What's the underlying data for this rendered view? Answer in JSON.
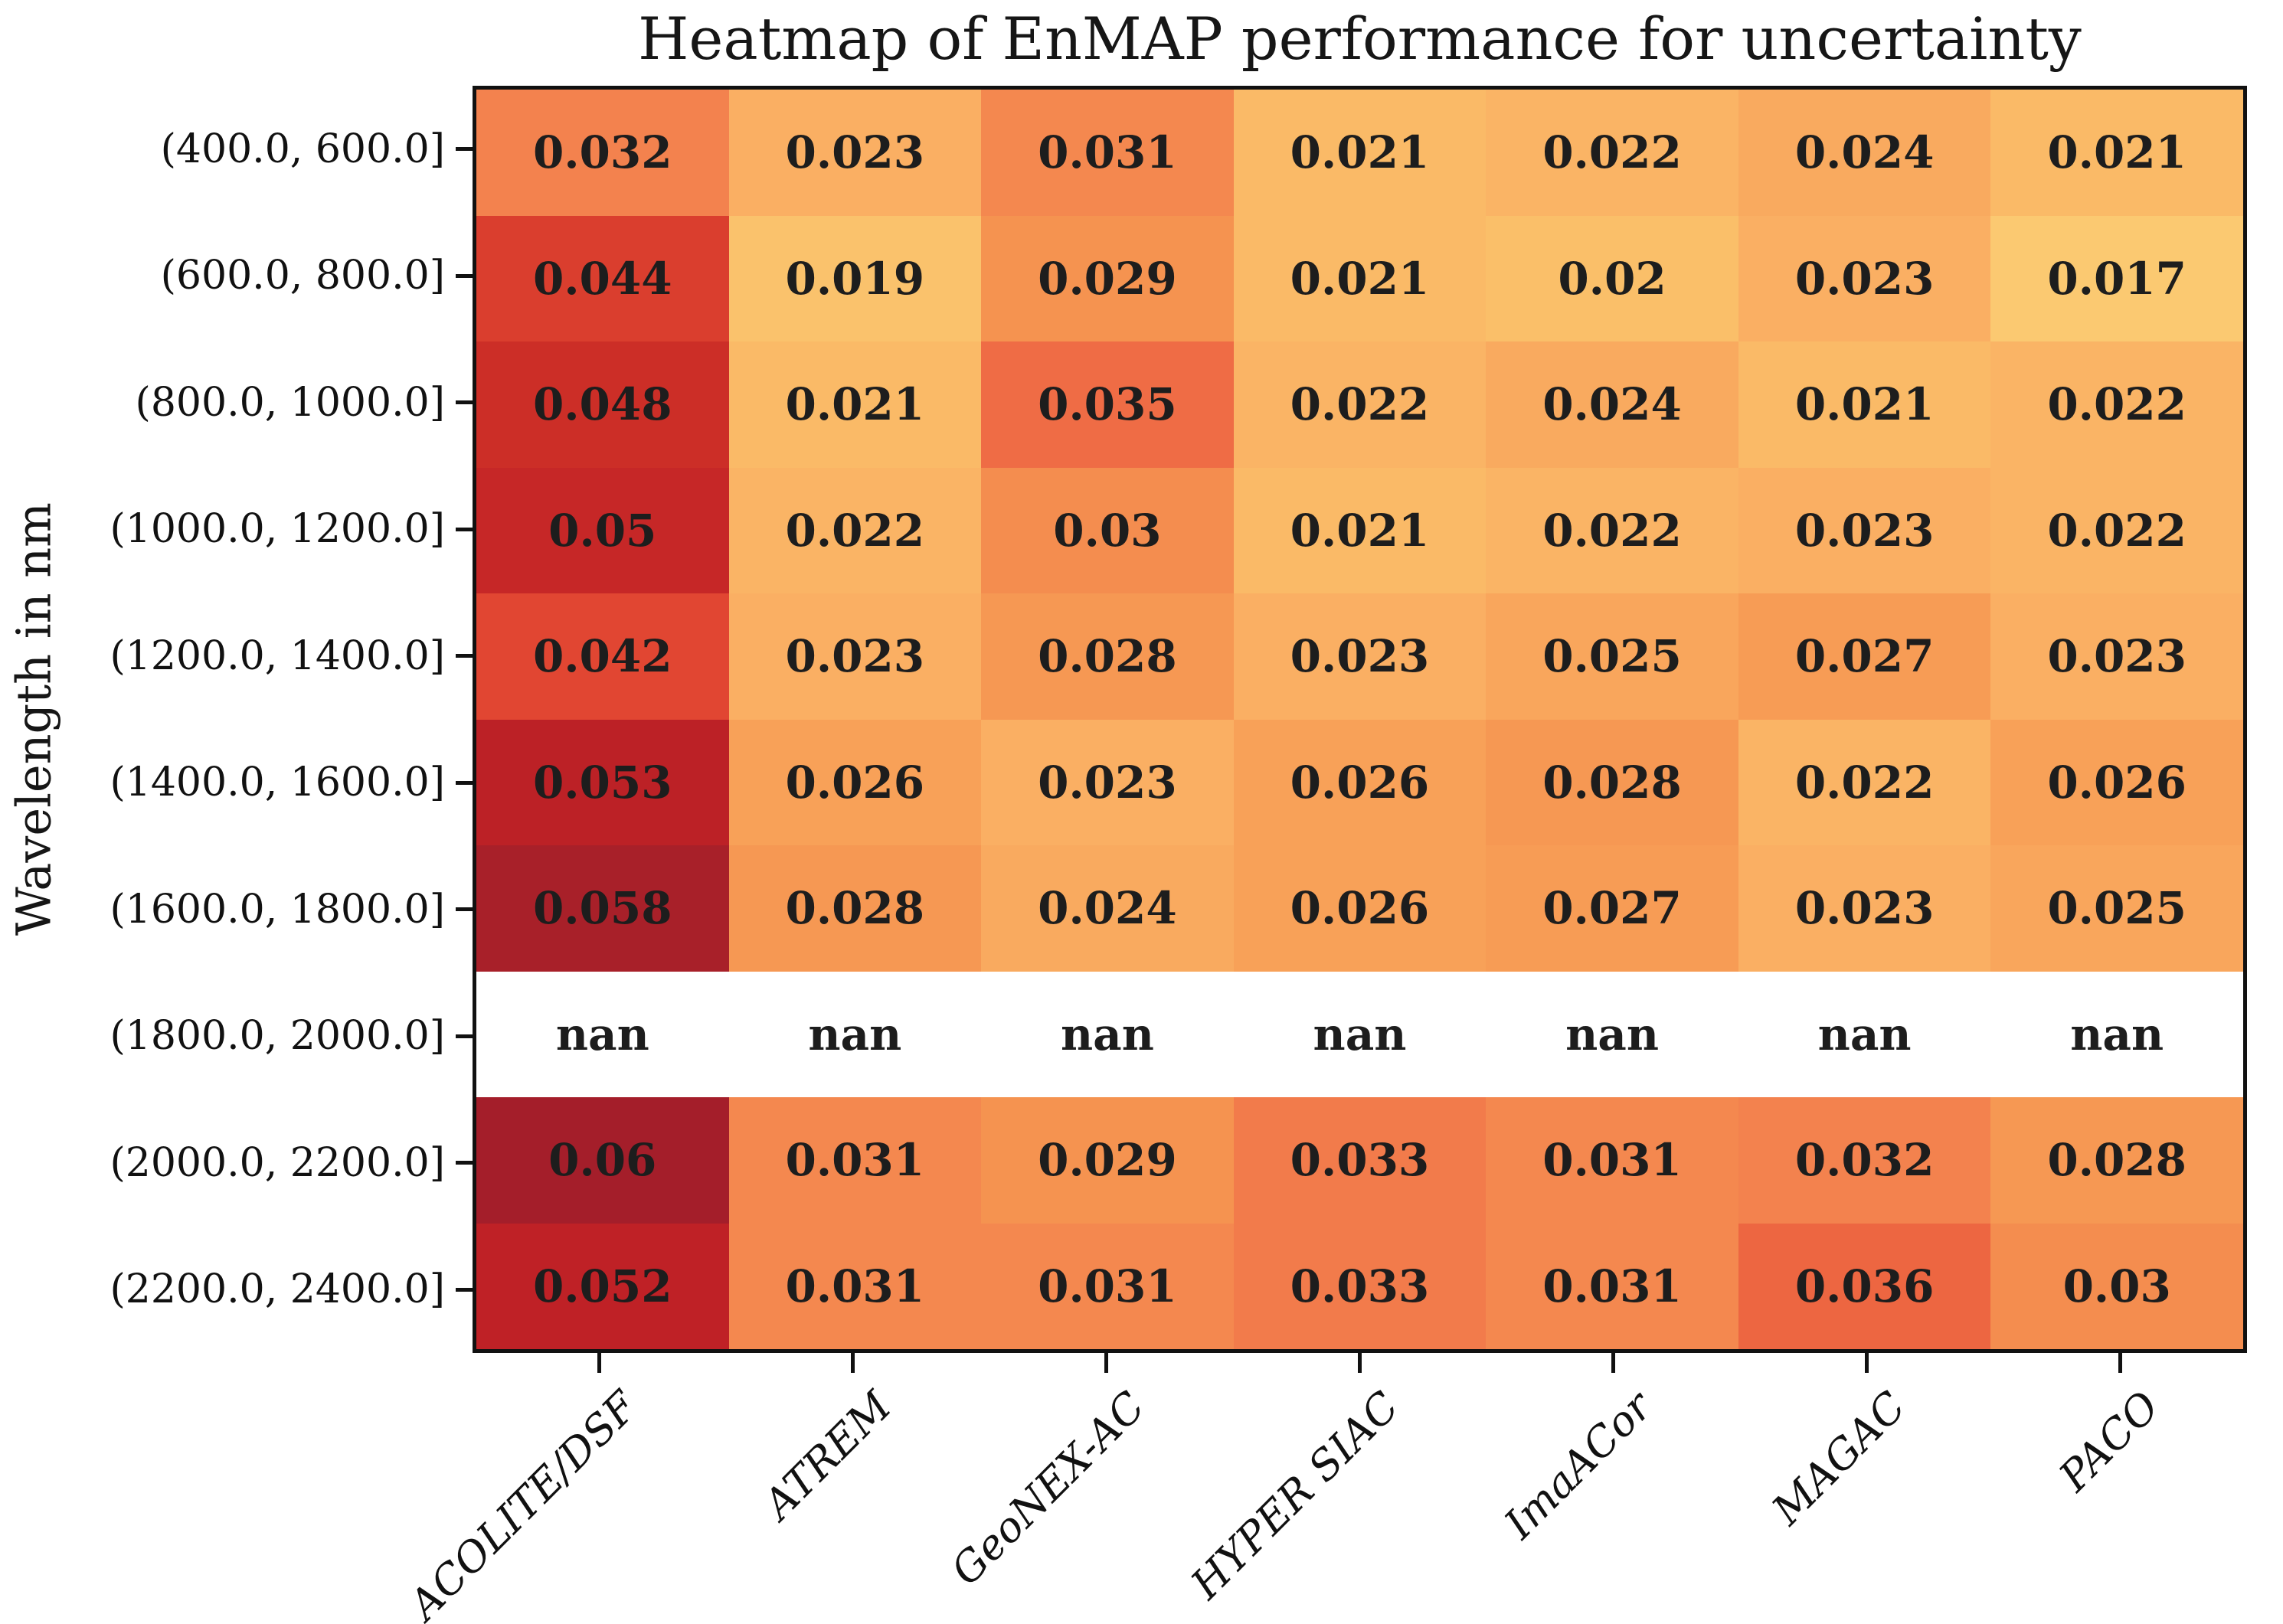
{
  "title": "Heatmap of EnMAP performance for uncertainty",
  "chart_data": {
    "type": "heatmap",
    "title": "Heatmap of EnMAP performance for uncertainty",
    "xlabel": "",
    "ylabel": "Wavelength in nm",
    "columns": [
      "ACOLITE/DSF",
      "ATREM",
      "GeoNEX-AC",
      "HYPER SIAC",
      "ImaACor",
      "MAGAC",
      "PACO"
    ],
    "rows": [
      "(400.0, 600.0]",
      "(600.0, 800.0]",
      "(800.0, 1000.0]",
      "(1000.0, 1200.0]",
      "(1200.0, 1400.0]",
      "(1400.0, 1600.0]",
      "(1600.0, 1800.0]",
      "(1800.0, 2000.0]",
      "(2000.0, 2200.0]",
      "(2200.0, 2400.0]"
    ],
    "values": [
      [
        0.032,
        0.023,
        0.031,
        0.021,
        0.022,
        0.024,
        0.021
      ],
      [
        0.044,
        0.019,
        0.029,
        0.021,
        0.02,
        0.023,
        0.017
      ],
      [
        0.048,
        0.021,
        0.035,
        0.022,
        0.024,
        0.021,
        0.022
      ],
      [
        0.05,
        0.022,
        0.03,
        0.021,
        0.022,
        0.023,
        0.022
      ],
      [
        0.042,
        0.023,
        0.028,
        0.023,
        0.025,
        0.027,
        0.023
      ],
      [
        0.053,
        0.026,
        0.023,
        0.026,
        0.028,
        0.022,
        0.026
      ],
      [
        0.058,
        0.028,
        0.024,
        0.026,
        0.027,
        0.023,
        0.025
      ],
      [
        null,
        null,
        null,
        null,
        null,
        null,
        null
      ],
      [
        0.06,
        0.031,
        0.029,
        0.033,
        0.031,
        0.032,
        0.028
      ],
      [
        0.052,
        0.031,
        0.031,
        0.033,
        0.031,
        0.036,
        0.03
      ]
    ],
    "nan_label": "nan",
    "value_range": [
      0.017,
      0.06
    ],
    "colormap_stops": [
      [
        0.017,
        "#FBC971"
      ],
      [
        0.02,
        "#FABF69"
      ],
      [
        0.023,
        "#FAAF63"
      ],
      [
        0.026,
        "#F8A158"
      ],
      [
        0.029,
        "#F59350"
      ],
      [
        0.032,
        "#F3824E"
      ],
      [
        0.035,
        "#EF6C45"
      ],
      [
        0.038,
        "#EA5A3A"
      ],
      [
        0.042,
        "#E14632"
      ],
      [
        0.045,
        "#D63A2C"
      ],
      [
        0.048,
        "#CC2E27"
      ],
      [
        0.052,
        "#BF2126"
      ],
      [
        0.055,
        "#B52027"
      ],
      [
        0.058,
        "#A82029"
      ],
      [
        0.06,
        "#A41E2A"
      ]
    ],
    "nan_color": "#ffffff",
    "annotation_color": "#1d1d1d",
    "axis_color": "#111111",
    "background": "#ffffff",
    "grid": false,
    "legend": "none"
  }
}
